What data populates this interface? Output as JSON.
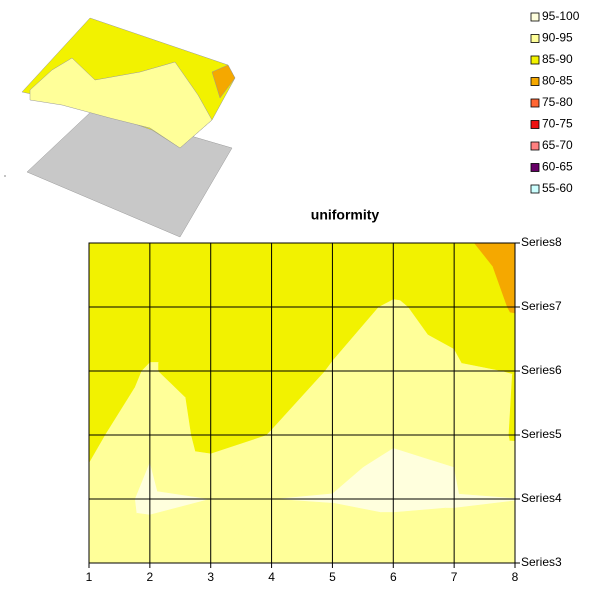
{
  "chart_data": {
    "type": "contour",
    "title": "uniformity",
    "x": [
      1,
      2,
      3,
      4,
      5,
      6,
      7,
      8
    ],
    "xlim": [
      1,
      8
    ],
    "xticks": [
      1,
      2,
      3,
      4,
      5,
      6,
      7,
      8
    ],
    "series": [
      {
        "name": "Series3",
        "values": [
          91.5,
          92,
          92,
          92,
          92,
          92,
          92,
          92
        ]
      },
      {
        "name": "Series4",
        "values": [
          92,
          96,
          95,
          95,
          95.2,
          95.8,
          95.5,
          95.1
        ]
      },
      {
        "name": "Series5",
        "values": [
          88.5,
          94.3,
          88,
          90.2,
          93,
          94.8,
          94.5,
          89.5
        ]
      },
      {
        "name": "Series6",
        "values": [
          87,
          90.5,
          87,
          88,
          90.3,
          92,
          90.8,
          89.8
        ]
      },
      {
        "name": "Series7",
        "values": [
          86,
          87,
          87,
          87.5,
          88.5,
          90.5,
          88.5,
          84.5
        ]
      },
      {
        "name": "Series8",
        "values": [
          86.5,
          86.5,
          86.5,
          86.5,
          86.5,
          86.5,
          86,
          83
        ]
      }
    ],
    "bands": [
      {
        "label": "95-100",
        "min": 95,
        "max": 100,
        "color": "#FFFFDD"
      },
      {
        "label": "90-95",
        "min": 90,
        "max": 95,
        "color": "#FFFF99"
      },
      {
        "label": "85-90",
        "min": 85,
        "max": 90,
        "color": "#F2F200"
      },
      {
        "label": "80-85",
        "min": 80,
        "max": 85,
        "color": "#F5A800"
      },
      {
        "label": "75-80",
        "min": 75,
        "max": 80,
        "color": "#FF6633"
      },
      {
        "label": "70-75",
        "min": 70,
        "max": 75,
        "color": "#EE1111"
      },
      {
        "label": "65-70",
        "min": 65,
        "max": 70,
        "color": "#FF8080"
      },
      {
        "label": "60-65",
        "min": 60,
        "max": 65,
        "color": "#660066"
      },
      {
        "label": "55-60",
        "min": 55,
        "max": 60,
        "color": "#CCFFFF"
      }
    ],
    "grid": true
  }
}
